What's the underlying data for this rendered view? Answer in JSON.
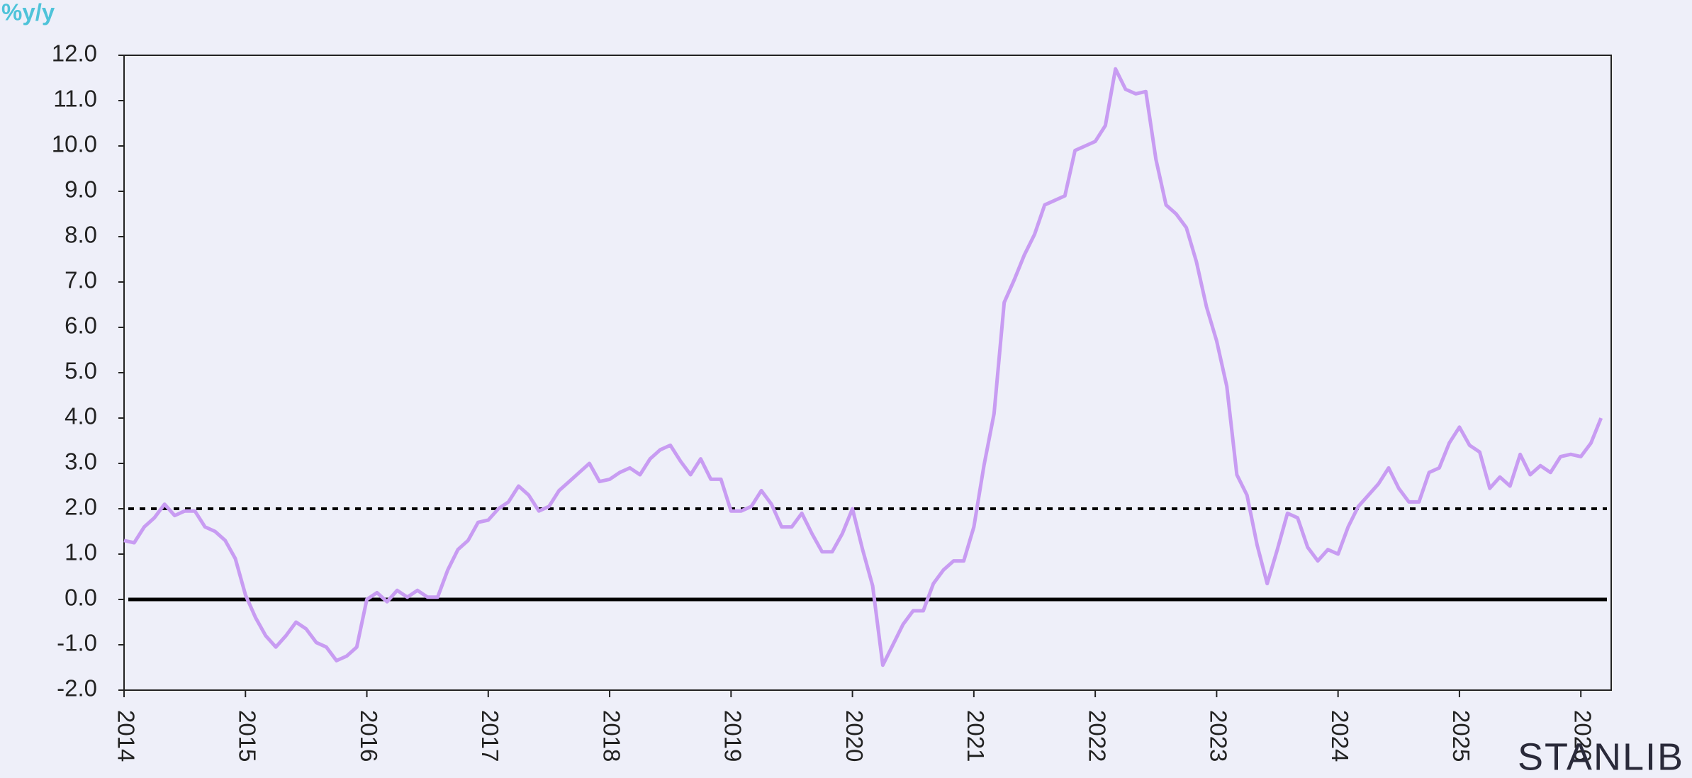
{
  "chart_data": {
    "type": "line",
    "y_axis_label": "%y/y",
    "watermark": "STANLIB",
    "x": [
      "2014-01",
      "2014-02",
      "2014-03",
      "2014-04",
      "2014-05",
      "2014-06",
      "2014-07",
      "2014-08",
      "2014-09",
      "2014-10",
      "2014-11",
      "2014-12",
      "2015-01",
      "2015-02",
      "2015-03",
      "2015-04",
      "2015-05",
      "2015-06",
      "2015-07",
      "2015-08",
      "2015-09",
      "2015-10",
      "2015-11",
      "2015-12",
      "2016-01",
      "2016-02",
      "2016-03",
      "2016-04",
      "2016-05",
      "2016-06",
      "2016-07",
      "2016-08",
      "2016-09",
      "2016-10",
      "2016-11",
      "2016-12",
      "2017-01",
      "2017-02",
      "2017-03",
      "2017-04",
      "2017-05",
      "2017-06",
      "2017-07",
      "2017-08",
      "2017-09",
      "2017-10",
      "2017-11",
      "2017-12",
      "2018-01",
      "2018-02",
      "2018-03",
      "2018-04",
      "2018-05",
      "2018-06",
      "2018-07",
      "2018-08",
      "2018-09",
      "2018-10",
      "2018-11",
      "2018-12",
      "2019-01",
      "2019-02",
      "2019-03",
      "2019-04",
      "2019-05",
      "2019-06",
      "2019-07",
      "2019-08",
      "2019-09",
      "2019-10",
      "2019-11",
      "2019-12",
      "2020-01",
      "2020-02",
      "2020-03",
      "2020-04",
      "2020-05",
      "2020-06",
      "2020-07",
      "2020-08",
      "2020-09",
      "2020-10",
      "2020-11",
      "2020-12",
      "2021-01",
      "2021-02",
      "2021-03",
      "2021-04",
      "2021-05",
      "2021-06",
      "2021-07",
      "2021-08",
      "2021-09",
      "2021-10",
      "2021-11",
      "2021-12",
      "2022-01",
      "2022-02",
      "2022-03",
      "2022-04",
      "2022-05",
      "2022-06",
      "2022-07",
      "2022-08",
      "2022-09",
      "2022-10",
      "2022-11",
      "2022-12",
      "2023-01",
      "2023-02",
      "2023-03",
      "2023-04",
      "2023-05",
      "2023-06",
      "2023-07",
      "2023-08",
      "2023-09",
      "2023-10",
      "2023-11",
      "2023-12",
      "2024-01",
      "2024-02",
      "2024-03",
      "2024-04",
      "2024-05",
      "2024-06",
      "2024-07",
      "2024-08",
      "2024-09",
      "2024-10",
      "2024-11",
      "2024-12",
      "2025-01",
      "2025-02",
      "2025-03",
      "2025-04",
      "2025-05",
      "2025-06",
      "2025-07",
      "2025-08",
      "2025-09",
      "2025-10",
      "2025-11",
      "2025-12",
      "2026-01",
      "2026-02",
      "2026-03"
    ],
    "series": [
      {
        "color": "#c89cf2",
        "values": [
          1.3,
          1.25,
          1.6,
          1.8,
          2.1,
          1.85,
          1.95,
          1.95,
          1.6,
          1.5,
          1.3,
          0.9,
          0.1,
          -0.4,
          -0.8,
          -1.05,
          -0.8,
          -0.5,
          -0.65,
          -0.95,
          -1.05,
          -1.35,
          -1.25,
          -1.05,
          0.0,
          0.15,
          -0.05,
          0.2,
          0.05,
          0.2,
          0.05,
          0.05,
          0.65,
          1.1,
          1.3,
          1.7,
          1.75,
          2.0,
          2.15,
          2.5,
          2.3,
          1.95,
          2.05,
          2.4,
          2.6,
          2.8,
          3.0,
          2.6,
          2.65,
          2.8,
          2.9,
          2.75,
          3.1,
          3.3,
          3.4,
          3.05,
          2.75,
          3.1,
          2.65,
          2.65,
          1.95,
          1.95,
          2.05,
          2.4,
          2.1,
          1.6,
          1.6,
          1.9,
          1.45,
          1.05,
          1.05,
          1.45,
          2.0,
          1.1,
          0.3,
          -1.45,
          -1.0,
          -0.55,
          -0.25,
          -0.25,
          0.35,
          0.65,
          0.85,
          0.85,
          1.6,
          2.95,
          4.1,
          6.55,
          7.05,
          7.6,
          8.05,
          8.7,
          8.8,
          8.9,
          9.9,
          10.0,
          10.1,
          10.45,
          11.7,
          11.25,
          11.15,
          11.2,
          9.7,
          8.7,
          8.5,
          8.2,
          7.45,
          6.45,
          5.7,
          4.7,
          2.75,
          2.3,
          1.2,
          0.35,
          1.1,
          1.9,
          1.8,
          1.15,
          0.85,
          1.1,
          1.0,
          1.6,
          2.05,
          2.3,
          2.55,
          2.9,
          2.45,
          2.15,
          2.15,
          2.8,
          2.9,
          3.45,
          3.8,
          3.4,
          3.25,
          2.45,
          2.7,
          2.5,
          3.2,
          2.75,
          2.95,
          2.8,
          3.15,
          3.2,
          3.15,
          3.45,
          4.0
        ]
      }
    ],
    "xlim": [
      2014,
      2026.25
    ],
    "xticks": [
      2014,
      2015,
      2016,
      2017,
      2018,
      2019,
      2020,
      2021,
      2022,
      2023,
      2024,
      2025,
      2026
    ],
    "ylim": [
      -2,
      12
    ],
    "yticks": [
      {
        "value": -2,
        "label": "-2.0"
      },
      {
        "value": -1,
        "label": "-1.0"
      },
      {
        "value": 0,
        "label": "0.0"
      },
      {
        "value": 1,
        "label": "1.0"
      },
      {
        "value": 2,
        "label": "2.0"
      },
      {
        "value": 3,
        "label": "3.0"
      },
      {
        "value": 4,
        "label": "4.0"
      },
      {
        "value": 5,
        "label": "5.0"
      },
      {
        "value": 6,
        "label": "6.0"
      },
      {
        "value": 7,
        "label": "7.0"
      },
      {
        "value": 8,
        "label": "8.0"
      },
      {
        "value": 9,
        "label": "9.0"
      },
      {
        "value": 10,
        "label": "10.0"
      },
      {
        "value": 11,
        "label": "11.0"
      },
      {
        "value": 12,
        "label": "12.0"
      }
    ],
    "hlines": [
      {
        "value": 0,
        "style": "solid"
      },
      {
        "value": 2,
        "style": "dotted"
      }
    ],
    "grid": false
  }
}
